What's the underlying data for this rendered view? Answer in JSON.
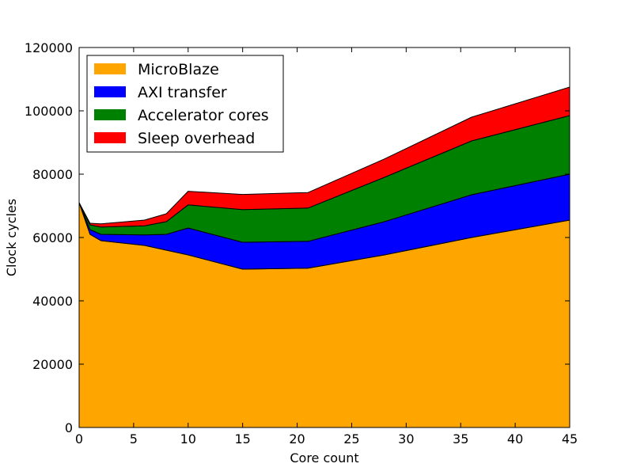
{
  "chart_data": {
    "type": "area",
    "stacked": true,
    "title": "",
    "xlabel": "Core count",
    "ylabel": "Clock cycles",
    "xlim": [
      0,
      45
    ],
    "ylim": [
      0,
      120000
    ],
    "xticks": [
      0,
      5,
      10,
      15,
      20,
      25,
      30,
      35,
      40,
      45
    ],
    "yticks": [
      0,
      20000,
      40000,
      60000,
      80000,
      100000,
      120000
    ],
    "grid": false,
    "legend_position": "top-left",
    "x": [
      0,
      1,
      2,
      6,
      8,
      10,
      15,
      21,
      28,
      36,
      45
    ],
    "series": [
      {
        "name": "MicroBlaze",
        "color": "#ffa500",
        "values": [
          71000,
          61000,
          59000,
          57500,
          56000,
          54500,
          50000,
          50300,
          54500,
          60000,
          65500
        ]
      },
      {
        "name": "AXI transfer",
        "color": "#0000ff",
        "values": [
          0,
          1500,
          2000,
          3300,
          5000,
          8500,
          8500,
          8500,
          10500,
          13500,
          14500
        ]
      },
      {
        "name": "Accelerator cores",
        "color": "#008000",
        "values": [
          0,
          1500,
          2300,
          2900,
          4000,
          7300,
          10300,
          10500,
          14000,
          17000,
          18500
        ]
      },
      {
        "name": "Sleep overhead",
        "color": "#ff0000",
        "values": [
          0,
          500,
          1000,
          1800,
          2500,
          4300,
          4800,
          4900,
          5800,
          7500,
          9000
        ]
      }
    ]
  }
}
